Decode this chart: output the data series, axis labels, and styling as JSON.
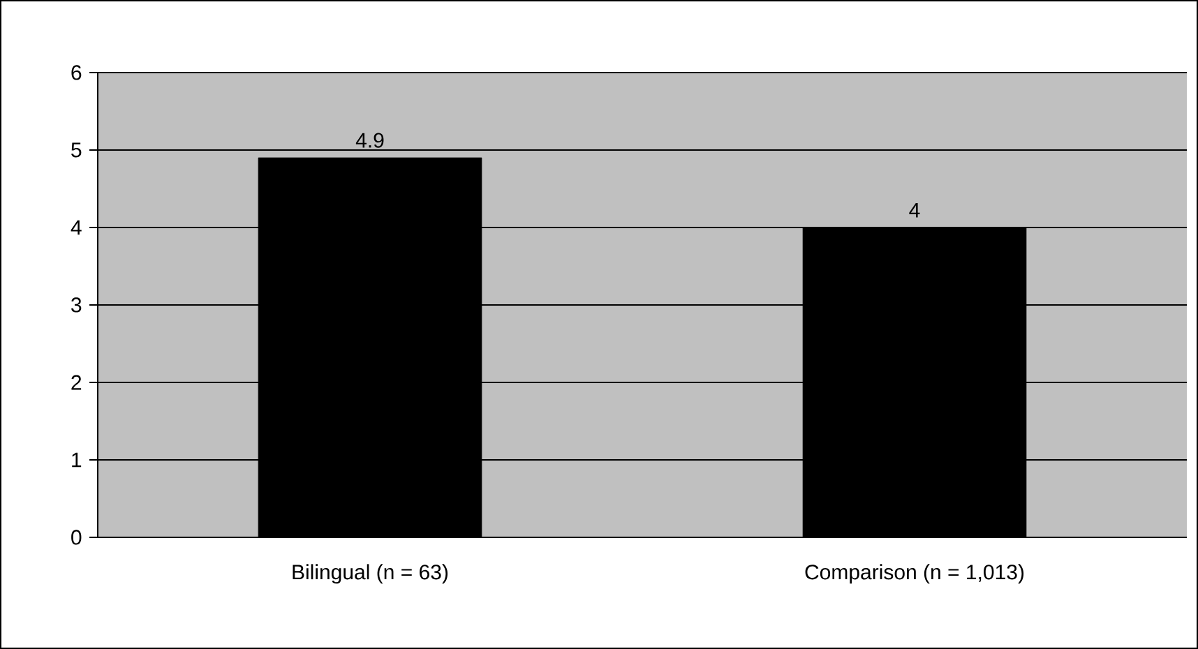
{
  "chart_data": {
    "type": "bar",
    "categories": [
      "Bilingual (n = 63)",
      "Comparison (n = 1,013)"
    ],
    "values": [
      4.9,
      4
    ],
    "color": "#000000",
    "ylim": [
      0,
      6
    ],
    "yticks": [
      0,
      1,
      2,
      3,
      4,
      5,
      6
    ],
    "grid": "y",
    "data_labels": true
  }
}
